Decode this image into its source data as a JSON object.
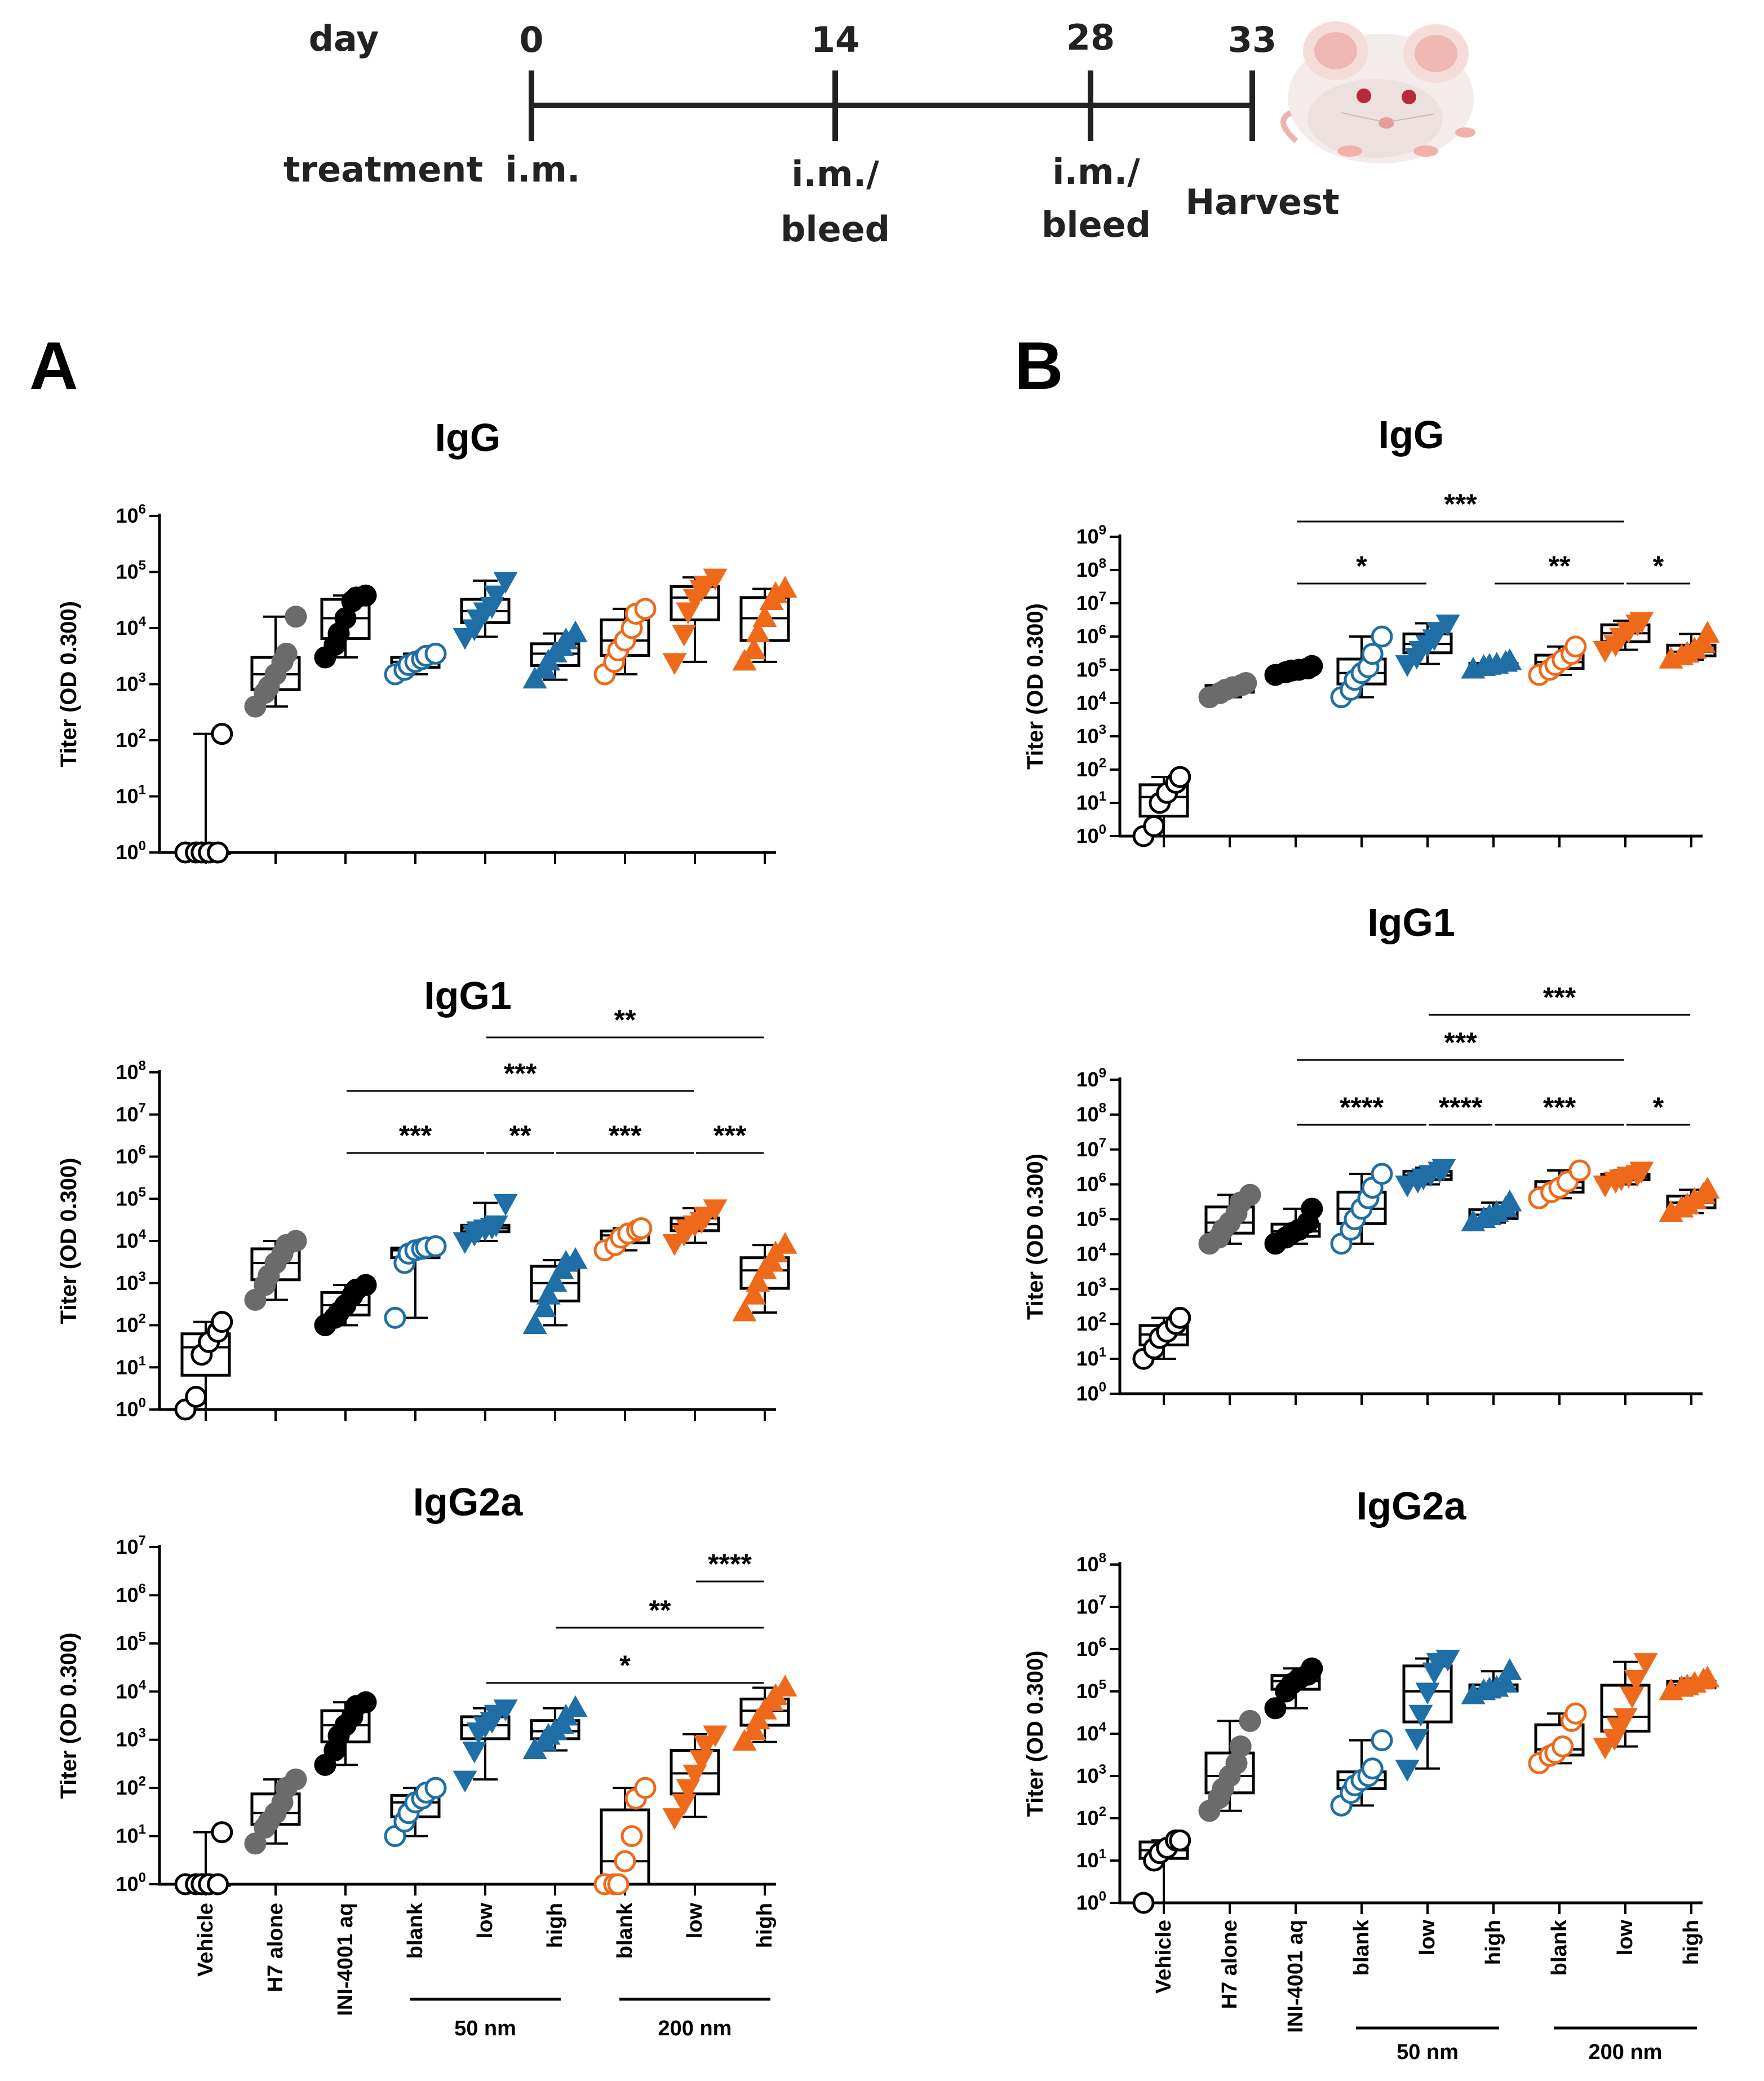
{
  "timeline": {
    "day_label": "day",
    "treatment_label": "treatment",
    "days": [
      "0",
      "14",
      "28",
      "33"
    ],
    "treatments": [
      [
        "i.m."
      ],
      [
        "i.m./",
        "bleed"
      ],
      [
        "i.m./",
        "bleed"
      ],
      [
        "Harvest"
      ]
    ],
    "mouse_icon": "mouse-icon"
  },
  "panels": [
    {
      "letter": "A"
    },
    {
      "letter": "B"
    }
  ],
  "categories": [
    "Vehicle",
    "H7 alone",
    "INI-4001 aq",
    "blank",
    "low",
    "high",
    "blank",
    "low",
    "high"
  ],
  "groups": [
    {
      "label": "50 nm",
      "from": 3,
      "to": 5
    },
    {
      "label": "200 nm",
      "from": 6,
      "to": 8
    }
  ],
  "colors": {
    "black": "#000000",
    "gray": "#6b6b6b",
    "blue": "#1f6fa6",
    "orange": "#ee6a1a"
  },
  "series_style": [
    {
      "color": "black",
      "marker": "circle",
      "filled": false
    },
    {
      "color": "gray",
      "marker": "circle",
      "filled": true
    },
    {
      "color": "black",
      "marker": "circle",
      "filled": true
    },
    {
      "color": "blue",
      "marker": "circle",
      "filled": false
    },
    {
      "color": "blue",
      "marker": "triangle-down",
      "filled": true
    },
    {
      "color": "blue",
      "marker": "triangle-up",
      "filled": true
    },
    {
      "color": "orange",
      "marker": "circle",
      "filled": false
    },
    {
      "color": "orange",
      "marker": "triangle-down",
      "filled": true
    },
    {
      "color": "orange",
      "marker": "triangle-up",
      "filled": true
    }
  ],
  "chart_data": [
    {
      "id": "A-IgG",
      "panel": "A",
      "type": "box",
      "title": "IgG",
      "ylabel": "Titer (OD 0.300)",
      "yscale": "log",
      "ylim_exp": [
        0,
        6
      ],
      "values": [
        [
          1,
          1,
          1,
          1,
          1,
          130
        ],
        [
          400,
          700,
          900,
          1500,
          2500,
          3500,
          16000
        ],
        [
          3000,
          5000,
          8000,
          15000,
          30000,
          35000,
          38000
        ],
        [
          1500,
          1800,
          2200,
          2500,
          2800,
          3200,
          3500
        ],
        [
          7000,
          10000,
          15000,
          20000,
          25000,
          40000,
          70000
        ],
        [
          1200,
          1800,
          2500,
          3500,
          4500,
          6000,
          8000
        ],
        [
          1500,
          2500,
          4000,
          6000,
          10000,
          18000,
          22000
        ],
        [
          2500,
          8000,
          20000,
          35000,
          50000,
          60000,
          80000
        ],
        [
          2500,
          4000,
          8000,
          15000,
          30000,
          40000,
          50000
        ]
      ],
      "annotations": []
    },
    {
      "id": "A-IgG1",
      "panel": "A",
      "type": "box",
      "title": "IgG1",
      "ylabel": "Titer (OD 0.300)",
      "yscale": "log",
      "ylim_exp": [
        0,
        8
      ],
      "values": [
        [
          1,
          2,
          20,
          40,
          70,
          120
        ],
        [
          400,
          900,
          1500,
          3000,
          5000,
          8000,
          10000
        ],
        [
          100,
          150,
          200,
          300,
          500,
          700,
          900
        ],
        [
          150,
          3000,
          5000,
          6000,
          6500,
          7000,
          7500
        ],
        [
          10000,
          15000,
          18000,
          20000,
          22000,
          25000,
          80000
        ],
        [
          100,
          250,
          500,
          1000,
          2000,
          3000,
          3500
        ],
        [
          6000,
          8000,
          12000,
          15000,
          18000,
          20000
        ],
        [
          9000,
          15000,
          20000,
          25000,
          30000,
          40000,
          60000
        ],
        [
          200,
          500,
          1000,
          2000,
          3000,
          5000,
          8000
        ]
      ],
      "annotations": [
        {
          "from": 4,
          "to": 8,
          "label": "**"
        },
        {
          "from": 2,
          "to": 7,
          "label": "***"
        },
        {
          "from": 2,
          "to": 4,
          "label": "***"
        },
        {
          "from": 4,
          "to": 5,
          "label": "**"
        },
        {
          "from": 5,
          "to": 7,
          "label": "***"
        },
        {
          "from": 7,
          "to": 8,
          "label": "***"
        }
      ]
    },
    {
      "id": "A-IgG2a",
      "panel": "A",
      "type": "box",
      "title": "IgG2a",
      "ylabel": "Titer (OD 0.300)",
      "yscale": "log",
      "ylim_exp": [
        0,
        7
      ],
      "values": [
        [
          1,
          1,
          1,
          1,
          1,
          12
        ],
        [
          7,
          15,
          20,
          30,
          50,
          100,
          150
        ],
        [
          300,
          600,
          1200,
          2000,
          3000,
          5000,
          6000
        ],
        [
          10,
          20,
          30,
          50,
          60,
          80,
          100
        ],
        [
          150,
          600,
          1500,
          2000,
          2500,
          3500,
          4500
        ],
        [
          600,
          900,
          1200,
          1500,
          2000,
          3000,
          4500
        ],
        [
          1,
          1,
          1,
          3,
          10,
          60,
          100
        ],
        [
          25,
          50,
          100,
          200,
          400,
          800,
          1300
        ],
        [
          900,
          1500,
          2500,
          4000,
          6000,
          8000,
          12000
        ]
      ],
      "annotations": [
        {
          "from": 7,
          "to": 8,
          "label": "****"
        },
        {
          "from": 5,
          "to": 8,
          "label": "**"
        },
        {
          "from": 4,
          "to": 8,
          "label": "*"
        }
      ]
    },
    {
      "id": "B-IgG",
      "panel": "B",
      "type": "box",
      "title": "IgG",
      "ylabel": "Titer (OD 0.300)",
      "yscale": "log",
      "ylim_exp": [
        0,
        9
      ],
      "values": [
        [
          1,
          2,
          10,
          20,
          40,
          60
        ],
        [
          15000,
          20000,
          25000,
          30000,
          35000,
          40000
        ],
        [
          70000,
          85000,
          95000,
          100000,
          110000,
          130000
        ],
        [
          15000,
          25000,
          50000,
          80000,
          120000,
          300000,
          1000000
        ],
        [
          150000,
          250000,
          400000,
          600000,
          900000,
          1500000,
          2500000
        ],
        [
          100000,
          120000,
          130000,
          140000,
          160000,
          180000
        ],
        [
          70000,
          100000,
          140000,
          200000,
          300000,
          500000
        ],
        [
          400000,
          600000,
          1000000,
          1500000,
          2500000,
          3000000
        ],
        [
          200000,
          250000,
          300000,
          400000,
          600000,
          1200000
        ]
      ],
      "annotations": [
        {
          "from": 2,
          "to": 7,
          "label": "***"
        },
        {
          "from": 2,
          "to": 4,
          "label": "*"
        },
        {
          "from": 5,
          "to": 7,
          "label": "**"
        },
        {
          "from": 7,
          "to": 8,
          "label": "*"
        }
      ]
    },
    {
      "id": "B-IgG1",
      "panel": "B",
      "type": "box",
      "title": "IgG1",
      "ylabel": "Titer (OD 0.300)",
      "yscale": "log",
      "ylim_exp": [
        0,
        9
      ],
      "values": [
        [
          10,
          20,
          40,
          60,
          100,
          150
        ],
        [
          20000,
          30000,
          50000,
          80000,
          150000,
          300000,
          500000
        ],
        [
          20000,
          30000,
          40000,
          50000,
          80000,
          200000
        ],
        [
          20000,
          50000,
          100000,
          200000,
          400000,
          800000,
          2000000
        ],
        [
          1000000,
          1300000,
          1600000,
          2000000,
          2500000,
          3000000
        ],
        [
          80000,
          100000,
          120000,
          150000,
          200000,
          300000
        ],
        [
          400000,
          600000,
          800000,
          1200000,
          2500000
        ],
        [
          1000000,
          1300000,
          1500000,
          1800000,
          2000000,
          2500000
        ],
        [
          150000,
          200000,
          250000,
          350000,
          500000,
          700000
        ]
      ],
      "annotations": [
        {
          "from": 4,
          "to": 8,
          "label": "***"
        },
        {
          "from": 2,
          "to": 7,
          "label": "***"
        },
        {
          "from": 2,
          "to": 4,
          "label": "****"
        },
        {
          "from": 4,
          "to": 5,
          "label": "****"
        },
        {
          "from": 5,
          "to": 7,
          "label": "***"
        },
        {
          "from": 7,
          "to": 8,
          "label": "*"
        }
      ]
    },
    {
      "id": "B-IgG2a",
      "panel": "B",
      "type": "box",
      "title": "IgG2a",
      "ylabel": "Titer (OD 0.300)",
      "yscale": "log",
      "ylim_exp": [
        0,
        8
      ],
      "values": [
        [
          1,
          10,
          15,
          20,
          30,
          30
        ],
        [
          150,
          300,
          500,
          1000,
          2000,
          5000,
          20000
        ],
        [
          40000,
          100000,
          150000,
          200000,
          250000,
          350000
        ],
        [
          200,
          400,
          600,
          800,
          1000,
          1500,
          7000
        ],
        [
          1500,
          8000,
          30000,
          100000,
          300000,
          500000,
          600000
        ],
        [
          80000,
          100000,
          110000,
          120000,
          150000,
          300000
        ],
        [
          2000,
          3000,
          3500,
          5000,
          20000,
          30000
        ],
        [
          5000,
          8000,
          15000,
          25000,
          80000,
          200000,
          500000
        ],
        [
          100000,
          120000,
          130000,
          150000,
          180000,
          200000
        ]
      ],
      "annotations": []
    }
  ]
}
